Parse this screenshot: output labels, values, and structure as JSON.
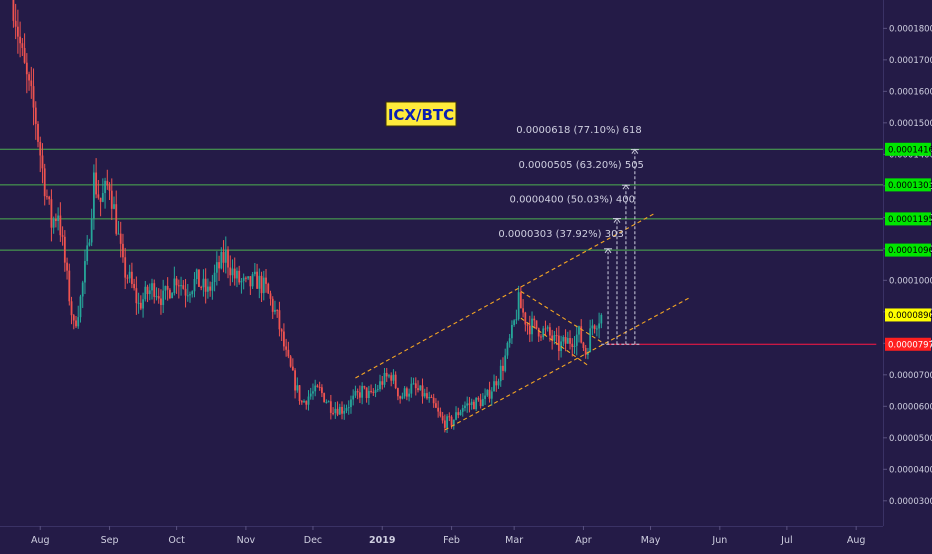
{
  "colors": {
    "background": "#241b47",
    "up_candle": "#26a69a",
    "down_candle": "#ef5350",
    "resistance_line": "#4caf50",
    "channel_line": "#f5a623",
    "entry_line": "#ff1744",
    "target_arrow": "#cfcfe0",
    "axis_text": "#cfcfe0",
    "title_bg": "#ffeb3b",
    "title_text": "#0b1fb0",
    "current_price_bg": "#ffff00",
    "green_tag_bg": "#00e600",
    "red_tag_bg": "#ff1f1f"
  },
  "chart_data": {
    "type": "candlestick",
    "title": "ICX/BTC",
    "ylim": [
      2.2e-05,
      0.000189
    ],
    "y_ticks": [
      "0.0000300",
      "0.0000400",
      "0.0000500",
      "0.0000600",
      "0.0000700",
      "0.0000800",
      "0.0000900",
      "0.0001000",
      "0.0001100",
      "0.0001200",
      "0.0001300",
      "0.0001400",
      "0.0001500",
      "0.0001600",
      "0.0001700",
      "0.0001800"
    ],
    "x_ticks": [
      {
        "label": "Aug",
        "date": "2018-08-01"
      },
      {
        "label": "Sep",
        "date": "2018-09-01"
      },
      {
        "label": "Oct",
        "date": "2018-10-01"
      },
      {
        "label": "Nov",
        "date": "2018-11-01"
      },
      {
        "label": "Dec",
        "date": "2018-12-01"
      },
      {
        "label": "2019",
        "date": "2019-01-01"
      },
      {
        "label": "Feb",
        "date": "2019-02-01"
      },
      {
        "label": "Mar",
        "date": "2019-03-01"
      },
      {
        "label": "Apr",
        "date": "2019-04-01"
      },
      {
        "label": "May",
        "date": "2019-05-01"
      },
      {
        "label": "Jun",
        "date": "2019-06-01"
      },
      {
        "label": "Jul",
        "date": "2019-07-01"
      },
      {
        "label": "Aug",
        "date": "2019-08-01"
      }
    ],
    "price_tags": [
      {
        "value": "0.0001416",
        "price": 0.0001416,
        "style": "green"
      },
      {
        "value": "0.0001303",
        "price": 0.0001303,
        "style": "green"
      },
      {
        "value": "0.0001195",
        "price": 0.0001195,
        "style": "green"
      },
      {
        "value": "0.0001096",
        "price": 0.0001096,
        "style": "green"
      },
      {
        "value": "0.0000890",
        "price": 8.9e-05,
        "style": "current"
      },
      {
        "value": "0.0000797",
        "price": 7.97e-05,
        "style": "red"
      }
    ],
    "resistance_levels": [
      0.0001416,
      0.0001303,
      0.0001195,
      0.0001096
    ],
    "entry_line": {
      "price": 7.97e-05,
      "start": "2019-04-12",
      "end": "2019-08-10"
    },
    "channel": {
      "upper": [
        {
          "date": "2018-12-20",
          "price": 6.9e-05
        },
        {
          "date": "2019-05-03",
          "price": 0.0001213
        }
      ],
      "lower": [
        {
          "date": "2019-01-29",
          "price": 5.25e-05
        },
        {
          "date": "2019-05-18",
          "price": 9.43e-05
        }
      ],
      "flag_upper": [
        {
          "date": "2019-03-04",
          "price": 9.65e-05
        },
        {
          "date": "2019-04-10",
          "price": 8e-05
        }
      ],
      "flag_lower": [
        {
          "date": "2019-03-04",
          "price": 8.8e-05
        },
        {
          "date": "2019-04-03",
          "price": 7.3e-05
        }
      ]
    },
    "targets": [
      {
        "label": "0.0000303 (37.92%) 303",
        "date": "2019-04-12",
        "to_price": 0.00011,
        "label_date": "2019-03-22",
        "label_price": 0.0001137
      },
      {
        "label": "0.0000400 (50.03%) 400",
        "date": "2019-04-16",
        "to_price": 0.0001196,
        "label_date": "2019-03-27",
        "label_price": 0.0001247
      },
      {
        "label": "0.0000505 (63.20%) 505",
        "date": "2019-04-20",
        "to_price": 0.0001302,
        "label_date": "2019-03-31",
        "label_price": 0.0001356
      },
      {
        "label": "0.0000618 (77.10%) 618",
        "date": "2019-04-24",
        "to_price": 0.0001415,
        "label_date": "2019-03-30",
        "label_price": 0.0001467
      }
    ],
    "price_path": [
      {
        "date": "2018-07-20",
        "price": 0.000189
      },
      {
        "date": "2018-07-24",
        "price": 0.00017
      },
      {
        "date": "2018-07-27",
        "price": 0.00016
      },
      {
        "date": "2018-07-30",
        "price": 0.000151
      },
      {
        "date": "2018-08-02",
        "price": 0.000135
      },
      {
        "date": "2018-08-06",
        "price": 0.000118
      },
      {
        "date": "2018-08-09",
        "price": 0.000122
      },
      {
        "date": "2018-08-13",
        "price": 0.0001
      },
      {
        "date": "2018-08-16",
        "price": 8.5e-05
      },
      {
        "date": "2018-08-19",
        "price": 9.4e-05
      },
      {
        "date": "2018-08-22",
        "price": 0.000108
      },
      {
        "date": "2018-08-25",
        "price": 0.000132
      },
      {
        "date": "2018-08-28",
        "price": 0.000125
      },
      {
        "date": "2018-09-01",
        "price": 0.000131
      },
      {
        "date": "2018-09-04",
        "price": 0.000118
      },
      {
        "date": "2018-09-07",
        "price": 0.000104
      },
      {
        "date": "2018-09-10",
        "price": 0.0001
      },
      {
        "date": "2018-09-14",
        "price": 9.2e-05
      },
      {
        "date": "2018-09-18",
        "price": 9.6e-05
      },
      {
        "date": "2018-09-21",
        "price": 9.8e-05
      },
      {
        "date": "2018-09-25",
        "price": 9.4e-05
      },
      {
        "date": "2018-10-01",
        "price": 0.000101
      },
      {
        "date": "2018-10-05",
        "price": 9.7e-05
      },
      {
        "date": "2018-10-10",
        "price": 0.0001
      },
      {
        "date": "2018-10-15",
        "price": 9.6e-05
      },
      {
        "date": "2018-10-19",
        "price": 0.000103
      },
      {
        "date": "2018-10-23",
        "price": 0.000108
      },
      {
        "date": "2018-10-27",
        "price": 0.000101
      },
      {
        "date": "2018-11-01",
        "price": 9.8e-05
      },
      {
        "date": "2018-11-06",
        "price": 0.0001
      },
      {
        "date": "2018-11-10",
        "price": 9.7e-05
      },
      {
        "date": "2018-11-15",
        "price": 8.8e-05
      },
      {
        "date": "2018-11-19",
        "price": 7.6e-05
      },
      {
        "date": "2018-11-23",
        "price": 6.7e-05
      },
      {
        "date": "2018-11-26",
        "price": 6.1e-05
      },
      {
        "date": "2018-11-30",
        "price": 6.4e-05
      },
      {
        "date": "2018-12-04",
        "price": 6.5e-05
      },
      {
        "date": "2018-12-09",
        "price": 6e-05
      },
      {
        "date": "2018-12-14",
        "price": 5.9e-05
      },
      {
        "date": "2018-12-19",
        "price": 6.2e-05
      },
      {
        "date": "2018-12-23",
        "price": 6.5e-05
      },
      {
        "date": "2018-12-27",
        "price": 6.3e-05
      },
      {
        "date": "2019-01-01",
        "price": 6.8e-05
      },
      {
        "date": "2019-01-05",
        "price": 7e-05
      },
      {
        "date": "2019-01-09",
        "price": 6.3e-05
      },
      {
        "date": "2019-01-14",
        "price": 6.6e-05
      },
      {
        "date": "2019-01-19",
        "price": 6.4e-05
      },
      {
        "date": "2019-01-24",
        "price": 6e-05
      },
      {
        "date": "2019-01-28",
        "price": 5.5e-05
      },
      {
        "date": "2019-02-01",
        "price": 5.5e-05
      },
      {
        "date": "2019-02-06",
        "price": 6e-05
      },
      {
        "date": "2019-02-11",
        "price": 6.1e-05
      },
      {
        "date": "2019-02-16",
        "price": 6.2e-05
      },
      {
        "date": "2019-02-20",
        "price": 6.7e-05
      },
      {
        "date": "2019-02-24",
        "price": 7.3e-05
      },
      {
        "date": "2019-02-28",
        "price": 8.3e-05
      },
      {
        "date": "2019-03-03",
        "price": 9.3e-05
      },
      {
        "date": "2019-03-07",
        "price": 8.6e-05
      },
      {
        "date": "2019-03-11",
        "price": 8.5e-05
      },
      {
        "date": "2019-03-16",
        "price": 8.3e-05
      },
      {
        "date": "2019-03-21",
        "price": 7.9e-05
      },
      {
        "date": "2019-03-26",
        "price": 8.1e-05
      },
      {
        "date": "2019-03-30",
        "price": 8.3e-05
      },
      {
        "date": "2019-04-02",
        "price": 7.7e-05
      },
      {
        "date": "2019-04-05",
        "price": 8.6e-05
      },
      {
        "date": "2019-04-09",
        "price": 8.9e-05
      }
    ]
  }
}
